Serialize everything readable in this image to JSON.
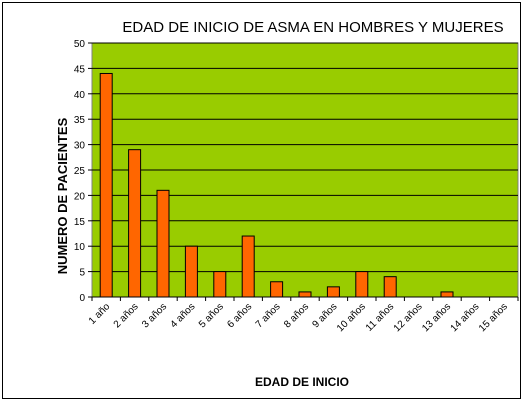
{
  "chart_data": {
    "type": "bar",
    "title": "EDAD DE INICIO DE ASMA EN HOMBRES Y MUJERES",
    "xlabel": "EDAD DE INICIO",
    "ylabel": "NUMERO DE PACIENTES",
    "categories": [
      "1 año",
      "2 años",
      "3 años",
      "4 años",
      "5 años",
      "6 años",
      "7 años",
      "8 años",
      "9 años",
      "10 años",
      "11 años",
      "12 años",
      "13 años",
      "14 años",
      "15 años"
    ],
    "values": [
      44,
      29,
      21,
      10,
      5,
      12,
      3,
      1,
      2,
      5,
      4,
      0,
      1,
      0,
      0
    ],
    "ylim": [
      0,
      50
    ],
    "yticks": [
      0,
      5,
      10,
      15,
      20,
      25,
      30,
      35,
      40,
      45,
      50
    ],
    "grid": true,
    "legend": "none",
    "colors": {
      "plot_background": "#99cc00",
      "bar_fill": "#ff6600",
      "bar_stroke": "#000000",
      "gridline": "#000000"
    }
  }
}
